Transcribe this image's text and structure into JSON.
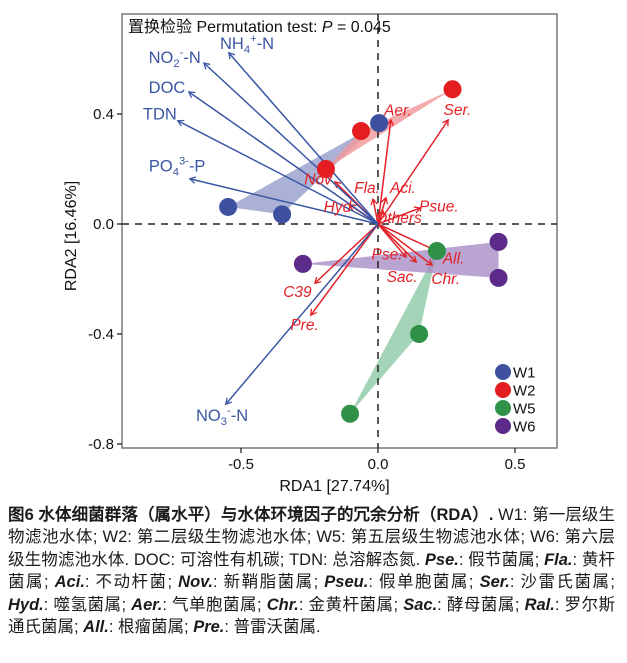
{
  "chart_data": {
    "type": "scatter",
    "title_parts": [
      {
        "t": "置换检验 Permutation test: "
      },
      {
        "t": "P",
        "m": "i"
      },
      {
        "t": " = 0.045"
      }
    ],
    "xlabel": "RDA1 [27.74%]",
    "ylabel": "RDA2 [16.46%]",
    "xlim": [
      -0.934,
      0.653
    ],
    "ylim": [
      -0.825,
      0.764
    ],
    "grid": "dashed-zero-lines",
    "legend_position": "bottom-right-inside",
    "xticks": [
      {
        "label": "-0.5",
        "value": -0.5
      },
      {
        "label": "0.0",
        "value": 0.0
      },
      {
        "label": "0.5",
        "value": 0.5
      }
    ],
    "yticks": [
      {
        "label": "0.4",
        "value": 0.4
      },
      {
        "label": "0.0",
        "value": 0.0
      },
      {
        "label": "-0.4",
        "value": -0.4
      },
      {
        "label": "-0.8",
        "value": -0.8
      }
    ],
    "colors": {
      "env_arrow": "#3A55A4",
      "species_arrow": "#E32228",
      "dashed_line": "#222222"
    },
    "groups": [
      {
        "name": "W1",
        "color": "#3D51A0",
        "hull_color": "#97A0CB",
        "points": [
          [
            -0.547,
            0.062
          ],
          [
            -0.35,
            0.035
          ],
          [
            0.004,
            0.367
          ]
        ]
      },
      {
        "name": "W2",
        "color": "#E41E20",
        "hull_color": "#F2999B",
        "points": [
          [
            -0.19,
            0.2
          ],
          [
            -0.062,
            0.338
          ],
          [
            0.272,
            0.49
          ]
        ]
      },
      {
        "name": "W5",
        "color": "#2F9147",
        "hull_color": "#8FCBA7",
        "points": [
          [
            0.215,
            -0.098
          ],
          [
            0.15,
            -0.4
          ],
          [
            -0.102,
            -0.69
          ]
        ]
      },
      {
        "name": "W6",
        "color": "#5C2B8A",
        "hull_color": "#AA90C8",
        "points": [
          [
            -0.274,
            -0.145
          ],
          [
            0.44,
            -0.065
          ],
          [
            0.44,
            -0.196
          ]
        ]
      }
    ],
    "env_arrows": [
      {
        "id": "nh4",
        "tip": [
          -0.544,
          0.622
        ],
        "label_pos": [
          -0.478,
          0.655
        ],
        "parts": [
          {
            "t": "NH"
          },
          {
            "t": "4",
            "m": "sub"
          },
          {
            "t": "+",
            "m": "sup"
          },
          {
            "t": "-N"
          }
        ]
      },
      {
        "id": "no2",
        "tip": [
          -0.635,
          0.585
        ],
        "label_pos": [
          -0.742,
          0.603
        ],
        "parts": [
          {
            "t": "NO"
          },
          {
            "t": "2",
            "m": "sub"
          },
          {
            "t": "-",
            "m": "sup"
          },
          {
            "t": "-N"
          }
        ]
      },
      {
        "id": "doc",
        "tip": [
          -0.69,
          0.48
        ],
        "label_pos": [
          -0.77,
          0.494
        ],
        "parts": [
          {
            "t": "DOC"
          }
        ]
      },
      {
        "id": "tdn",
        "tip": [
          -0.73,
          0.375
        ],
        "label_pos": [
          -0.796,
          0.399
        ],
        "parts": [
          {
            "t": "TDN"
          }
        ]
      },
      {
        "id": "po4",
        "tip": [
          -0.686,
          0.164
        ],
        "label_pos": [
          -0.733,
          0.21
        ],
        "parts": [
          {
            "t": "PO"
          },
          {
            "t": "4",
            "m": "sub"
          },
          {
            "t": "3-",
            "m": "sup"
          },
          {
            "t": "-P"
          }
        ]
      },
      {
        "id": "no3",
        "tip": [
          -0.555,
          -0.655
        ],
        "label_pos": [
          -0.569,
          -0.698
        ],
        "parts": [
          {
            "t": "NO"
          },
          {
            "t": "3",
            "m": "sub"
          },
          {
            "t": "-",
            "m": "sup"
          },
          {
            "t": "-N"
          }
        ]
      }
    ],
    "species_arrows": [
      {
        "id": "aer",
        "tip": [
          0.047,
          0.378
        ],
        "label": "Aer.",
        "label_pos": [
          0.073,
          0.413
        ]
      },
      {
        "id": "ser",
        "tip": [
          0.256,
          0.378
        ],
        "label": "Ser.",
        "label_pos": [
          0.29,
          0.415
        ]
      },
      {
        "id": "nov",
        "tip": [
          -0.157,
          0.153
        ],
        "label": "Nov",
        "label_pos": [
          -0.219,
          0.162
        ]
      },
      {
        "id": "fla",
        "tip": [
          -0.018,
          0.09
        ],
        "label": "Fla.",
        "label_pos": [
          -0.04,
          0.131
        ]
      },
      {
        "id": "aci",
        "tip": [
          0.029,
          0.095
        ],
        "label": "Aci.",
        "label_pos": [
          0.091,
          0.131
        ]
      },
      {
        "id": "hyd",
        "tip": [
          -0.102,
          0.069
        ],
        "label": "Hyd",
        "label_pos": [
          -0.148,
          0.062
        ]
      },
      {
        "id": "psue",
        "tip": [
          0.153,
          0.058
        ],
        "label": "Psue.",
        "label_pos": [
          0.222,
          0.063
        ]
      },
      {
        "id": "others",
        "tip": [
          0.018,
          0.047
        ],
        "label": "Others",
        "label_pos": [
          0.075,
          0.022
        ]
      },
      {
        "id": "pse",
        "tip": [
          0.102,
          -0.12
        ],
        "label": "Pse.",
        "label_pos": [
          0.033,
          -0.11
        ]
      },
      {
        "id": "sac",
        "tip": [
          0.139,
          -0.138
        ],
        "label": "Sac.",
        "label_pos": [
          0.088,
          -0.192
        ]
      },
      {
        "id": "all",
        "tip": [
          0.208,
          -0.095
        ],
        "label": "All.",
        "label_pos": [
          0.276,
          -0.126
        ]
      },
      {
        "id": "chr",
        "tip": [
          0.197,
          -0.149
        ],
        "label": "Chr.",
        "label_pos": [
          0.247,
          -0.2
        ]
      },
      {
        "id": "c39",
        "tip": [
          -0.23,
          -0.215
        ],
        "label": "C39",
        "label_pos": [
          -0.294,
          -0.248
        ]
      },
      {
        "id": "pre",
        "tip": [
          -0.245,
          -0.331
        ],
        "label": "Pre.",
        "label_pos": [
          -0.268,
          -0.368
        ]
      }
    ],
    "legend": [
      {
        "label": "W1",
        "color": "#3D51A0"
      },
      {
        "label": "W2",
        "color": "#E41E20"
      },
      {
        "label": "W5",
        "color": "#2F9147"
      },
      {
        "label": "W6",
        "color": "#5C2B8A"
      }
    ]
  },
  "caption": {
    "segments": [
      {
        "s": "bold",
        "t": "图6  水体细菌群落（属水平）与水体环境因子的冗余分析（RDA）. "
      },
      {
        "s": "normal",
        "t": "W1: 第一层级生物滤池水体; W2: 第二层级生物滤池水体; W5: 第五层级生物滤池水体; W6: 第六层级生物滤池水体. DOC: 可溶性有机碳; TDN: 总溶解态氮. "
      },
      {
        "s": "genus",
        "t": "Pse."
      },
      {
        "s": "normal",
        "t": ": 假节菌属; "
      },
      {
        "s": "genus",
        "t": "Fla."
      },
      {
        "s": "normal",
        "t": ": 黄杆菌属; "
      },
      {
        "s": "genus",
        "t": "Aci."
      },
      {
        "s": "normal",
        "t": ": 不动杆菌; "
      },
      {
        "s": "genus",
        "t": "Nov."
      },
      {
        "s": "normal",
        "t": ": 新鞘脂菌属; "
      },
      {
        "s": "genus",
        "t": "Pseu."
      },
      {
        "s": "normal",
        "t": ": 假单胞菌属; "
      },
      {
        "s": "genus",
        "t": "Ser."
      },
      {
        "s": "normal",
        "t": ": 沙雷氏菌属; "
      },
      {
        "s": "genus",
        "t": "Hyd."
      },
      {
        "s": "normal",
        "t": ": 噬氢菌属; "
      },
      {
        "s": "genus",
        "t": "Aer."
      },
      {
        "s": "normal",
        "t": ": 气单胞菌属; "
      },
      {
        "s": "genus",
        "t": "Chr."
      },
      {
        "s": "normal",
        "t": ": 金黄杆菌属; "
      },
      {
        "s": "genus",
        "t": "Sac."
      },
      {
        "s": "normal",
        "t": ": 酵母菌属; "
      },
      {
        "s": "genus",
        "t": "Ral."
      },
      {
        "s": "normal",
        "t": ": 罗尔斯通氏菌属; "
      },
      {
        "s": "genus",
        "t": "All."
      },
      {
        "s": "normal",
        "t": ": 根瘤菌属; "
      },
      {
        "s": "genus",
        "t": "Pre."
      },
      {
        "s": "normal",
        "t": ": 普雷沃菌属."
      }
    ]
  }
}
